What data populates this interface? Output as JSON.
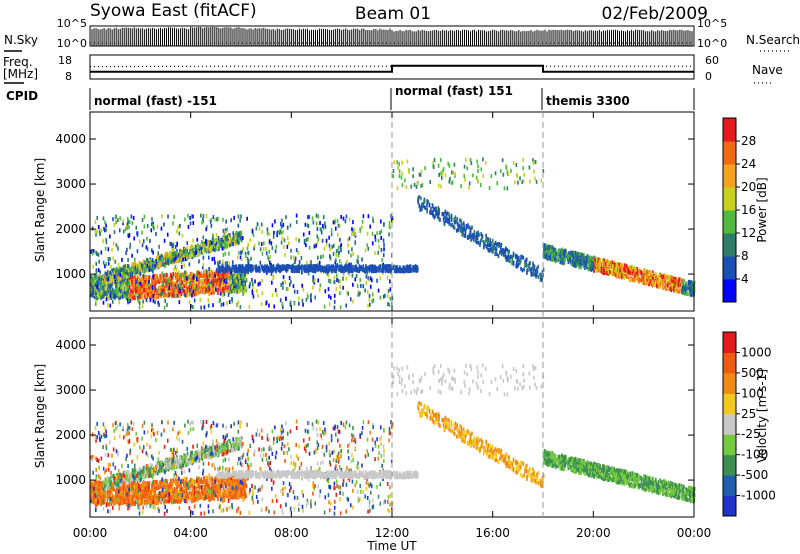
{
  "header": {
    "station": "Syowa East (fitACF)",
    "beam": "Beam 01",
    "date": "02/Feb/2009"
  },
  "side_labels": {
    "nsky": "N.Sky",
    "freq_line1": "Freq.",
    "freq_line2": "[MHz]",
    "cpid": "CPID",
    "nsearch": "N.Search",
    "nave": "Nave"
  },
  "chart_data": [
    {
      "type": "line",
      "name": "nsky-nsearch-panel",
      "left_ticks": [
        "10^5",
        "10^0"
      ],
      "right_ticks": [
        "10^5",
        "10^0"
      ],
      "yscale": "log",
      "ylim": [
        1,
        100000
      ],
      "series": [
        {
          "name": "N.Sky",
          "x": [
            0,
            1,
            2,
            3,
            4,
            5,
            6,
            7,
            8,
            9,
            10,
            11,
            12,
            13,
            14,
            15,
            16,
            17,
            18,
            19,
            20,
            21,
            22,
            23,
            24
          ],
          "y": [
            30000,
            40000,
            30000,
            40000,
            60000,
            50000,
            30000,
            20000,
            20000,
            20000,
            20000,
            20000,
            10000,
            10000,
            10000,
            10000,
            10000,
            10000,
            10000,
            10000,
            10000,
            10000,
            10000,
            10000,
            10000
          ]
        },
        {
          "name": "N.Search",
          "x": [
            0,
            24
          ],
          "y": [
            2,
            2
          ]
        }
      ]
    },
    {
      "type": "line",
      "name": "freq-nave-panel",
      "left_ticks": [
        "18",
        "8"
      ],
      "right_ticks": [
        "60",
        "0"
      ],
      "series": [
        {
          "name": "Freq. [MHz]",
          "x": [
            0,
            12,
            12,
            18,
            18,
            24
          ],
          "y": [
            11,
            11,
            13.5,
            13.5,
            11,
            11
          ]
        },
        {
          "name": "Nave",
          "x": [
            0,
            6,
            12,
            18,
            24
          ],
          "y": [
            31,
            32,
            32,
            32,
            32
          ]
        }
      ]
    },
    {
      "type": "table",
      "name": "cpid-row",
      "segments": [
        {
          "start": 0,
          "end": 12,
          "label": "normal (fast) -151"
        },
        {
          "start": 12,
          "end": 18,
          "label": "normal (fast) 151"
        },
        {
          "start": 18,
          "end": 24,
          "label": "themis 3300"
        }
      ]
    },
    {
      "type": "heatmap",
      "name": "power-panel",
      "ylabel": "Slant Range [km]",
      "ylim": [
        180,
        4600
      ],
      "yticks": [
        "1000",
        "2000",
        "3000",
        "4000"
      ],
      "colorbar_label": "Power [dB]",
      "colorbar_ticks": [
        "4",
        "8",
        "12",
        "16",
        "20",
        "24",
        "28"
      ],
      "scale": [
        "#0000ff",
        "#1a4fb5",
        "#2e7d6b",
        "#4fbb3c",
        "#c8d11e",
        "#f3a31e",
        "#f06a12",
        "#e41a1c"
      ]
    },
    {
      "type": "heatmap",
      "name": "velocity-panel",
      "ylabel": "Slant Range [km]",
      "ylim": [
        180,
        4600
      ],
      "yticks": [
        "1000",
        "2000",
        "3000",
        "4000"
      ],
      "colorbar_label": "Velocity [m s-1]",
      "colorbar_ticks": [
        "1000",
        "500",
        "100",
        "25",
        "-25",
        "-100",
        "-500",
        "-1000"
      ],
      "scale": [
        "#2233cc",
        "#1f5fae",
        "#3c8f52",
        "#74c93f",
        "#c8c8c8",
        "#f3c81e",
        "#f08a12",
        "#ee5a10",
        "#e41a1c"
      ]
    }
  ],
  "xaxis": {
    "label": "Time UT",
    "ticks": [
      "00:00",
      "04:00",
      "08:00",
      "12:00",
      "16:00",
      "20:00",
      "00:00"
    ],
    "range_hours": [
      0,
      24
    ]
  }
}
